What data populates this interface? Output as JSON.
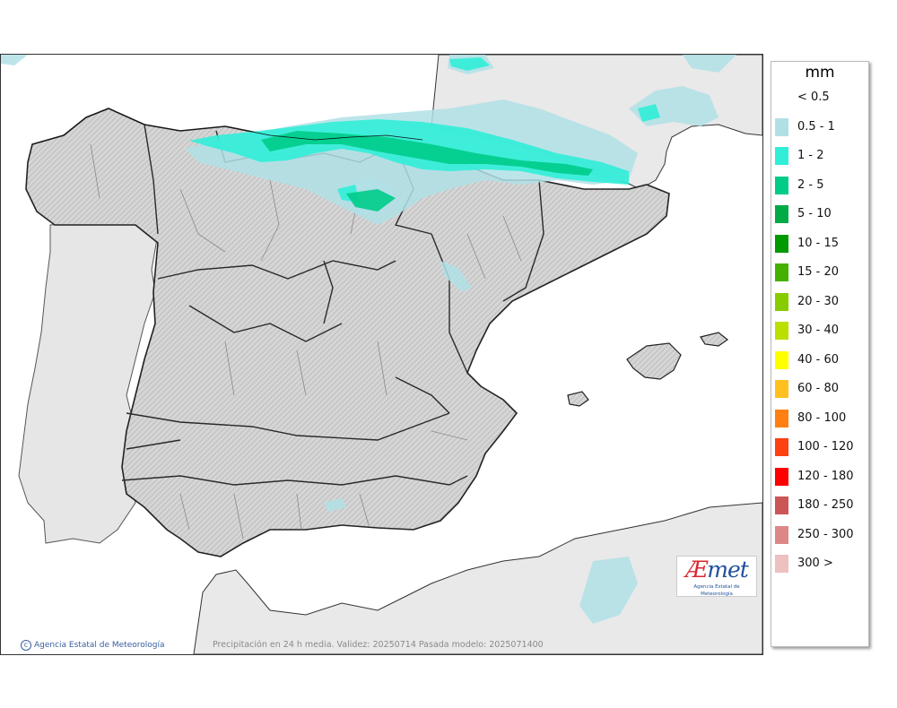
{
  "map": {
    "caption": "Precipitación en 24 h media. Validez: 20250714 Pasada modelo: 2025071400",
    "credit": "Agencia Estatal de Meteorología",
    "logo": {
      "mark_a": "Æ",
      "mark_b": "met",
      "subtitle": "Agencia Estatal de Meteorología"
    },
    "colors": {
      "sea": "#ffffff",
      "foreign_land": "#e8e8e8",
      "spain_land": "#dcdcdc",
      "borders": "#222222"
    }
  },
  "legend": {
    "unit": "mm",
    "items": [
      {
        "label": "< 0.5",
        "color": ""
      },
      {
        "label": "0.5 - 1",
        "color": "#b0e0e6"
      },
      {
        "label": "1 - 2",
        "color": "#30eed8"
      },
      {
        "label": "2 - 5",
        "color": "#00cc88"
      },
      {
        "label": "5 - 10",
        "color": "#00aa44"
      },
      {
        "label": "10 - 15",
        "color": "#009900"
      },
      {
        "label": "15 - 20",
        "color": "#44b000"
      },
      {
        "label": "20 - 30",
        "color": "#88cc00"
      },
      {
        "label": "30 - 40",
        "color": "#bbe000"
      },
      {
        "label": "40 - 60",
        "color": "#ffff00"
      },
      {
        "label": "60 - 80",
        "color": "#ffc020"
      },
      {
        "label": "80 - 100",
        "color": "#ff8010"
      },
      {
        "label": "100 - 120",
        "color": "#ff4010"
      },
      {
        "label": "120 - 180",
        "color": "#ff0000"
      },
      {
        "label": "180 - 250",
        "color": "#cc5555"
      },
      {
        "label": "250 - 300",
        "color": "#dd8888"
      },
      {
        "label": "300 >",
        "color": "#eec0c0"
      }
    ]
  }
}
